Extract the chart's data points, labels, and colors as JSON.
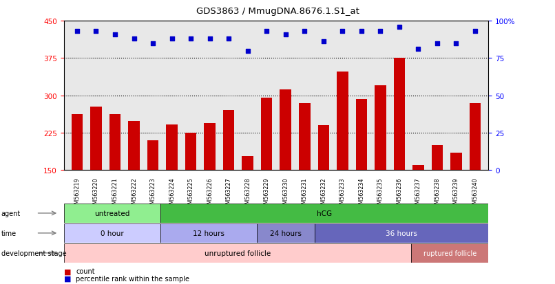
{
  "title": "GDS3863 / MmugDNA.8676.1.S1_at",
  "samples": [
    "GSM563219",
    "GSM563220",
    "GSM563221",
    "GSM563222",
    "GSM563223",
    "GSM563224",
    "GSM563225",
    "GSM563226",
    "GSM563227",
    "GSM563228",
    "GSM563229",
    "GSM563230",
    "GSM563231",
    "GSM563232",
    "GSM563233",
    "GSM563234",
    "GSM563235",
    "GSM563236",
    "GSM563237",
    "GSM563238",
    "GSM563239",
    "GSM563240"
  ],
  "counts": [
    263,
    277,
    262,
    248,
    210,
    242,
    225,
    245,
    270,
    178,
    295,
    312,
    285,
    240,
    348,
    293,
    320,
    375,
    160,
    200,
    185,
    285
  ],
  "percentiles": [
    93,
    93,
    91,
    88,
    85,
    88,
    88,
    88,
    88,
    80,
    93,
    91,
    93,
    86,
    93,
    93,
    93,
    96,
    81,
    85,
    85,
    93
  ],
  "ylim_left": [
    150,
    450
  ],
  "ylim_right": [
    0,
    100
  ],
  "yticks_left": [
    150,
    225,
    300,
    375,
    450
  ],
  "yticks_right": [
    0,
    25,
    50,
    75,
    100
  ],
  "bar_color": "#CC0000",
  "dot_color": "#0000CC",
  "bg_color": "#E8E8E8",
  "agent_untreated_color": "#90EE90",
  "agent_hcg_color": "#44BB44",
  "time_0_color": "#CCCCFF",
  "time_12_color": "#AAAAEE",
  "time_24_color": "#8888CC",
  "time_36_color": "#6666BB",
  "dev_unruptured_color": "#FFCCCC",
  "dev_ruptured_color": "#CC7777",
  "agent_untreated_n": 5,
  "agent_hcg_n": 17,
  "time_0_n": 5,
  "time_12_n": 5,
  "time_24_n": 3,
  "time_36_n": 9,
  "dev_unruptured_n": 18,
  "dev_ruptured_n": 4
}
